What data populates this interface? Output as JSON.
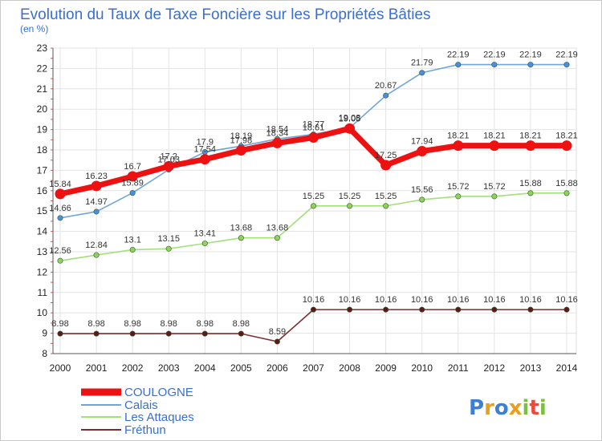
{
  "chart_data": {
    "type": "line",
    "title": "Evolution du Taux de Taxe Foncière sur les Propriétés Bâties",
    "subtitle": "(en %)",
    "x": [
      "2000",
      "2001",
      "2002",
      "2003",
      "2004",
      "2005",
      "2006",
      "2007",
      "2008",
      "2009",
      "2010",
      "2011",
      "2012",
      "2013",
      "2014"
    ],
    "ylim": [
      8,
      23
    ],
    "yticks": [
      8,
      9,
      10,
      11,
      12,
      13,
      14,
      15,
      16,
      17,
      18,
      19,
      20,
      21,
      22,
      23
    ],
    "grid": true,
    "legend_placement": "bottom-left",
    "series": [
      {
        "name": "COULOGNE",
        "color": "#ee1111",
        "values": [
          15.84,
          16.23,
          16.7,
          17.2,
          17.54,
          17.98,
          18.34,
          18.61,
          19.05,
          17.25,
          17.94,
          18.21,
          18.21,
          18.21,
          18.21
        ],
        "labels": [
          "15.84",
          "16.23",
          "16.7",
          "17.2",
          "17.54",
          "17.98",
          "18.34",
          "18.61",
          "19.05",
          "17.25",
          "17.94",
          "18.21",
          "18.21",
          "18.21",
          "18.21"
        ]
      },
      {
        "name": "Calais",
        "color": "#6fa6d6",
        "marker": "#4a90e2",
        "values": [
          14.66,
          14.97,
          15.89,
          17.03,
          17.9,
          18.19,
          18.54,
          18.77,
          19.08,
          20.67,
          21.79,
          22.19,
          22.19,
          22.19,
          22.19
        ],
        "labels": [
          "14.66",
          "14.97",
          "15.89",
          "17.03",
          "17.9",
          "18.19",
          "18.54",
          "18.77",
          "19.08",
          "20.67",
          "21.79",
          "22.19",
          "22.19",
          "22.19",
          "22.19"
        ]
      },
      {
        "name": "Les Attaques",
        "color": "#a4e07a",
        "marker": "#8fd35a",
        "values": [
          12.56,
          12.84,
          13.1,
          13.15,
          13.41,
          13.68,
          13.68,
          15.25,
          15.25,
          15.25,
          15.56,
          15.72,
          15.72,
          15.88,
          15.88
        ],
        "labels": [
          "12.56",
          "12.84",
          "13.1",
          "13.15",
          "13.41",
          "13.68",
          "13.68",
          "15.25",
          "15.25",
          "15.25",
          "15.56",
          "15.72",
          "15.72",
          "15.88",
          "15.88"
        ]
      },
      {
        "name": "Fréthun",
        "color": "#7a2e2e",
        "marker": "#5a1a1a",
        "values": [
          8.98,
          8.98,
          8.98,
          8.98,
          8.98,
          8.98,
          8.59,
          10.16,
          10.16,
          10.16,
          10.16,
          10.16,
          10.16,
          10.16,
          10.16
        ],
        "labels": [
          "8.98",
          "8.98",
          "8.98",
          "8.98",
          "8.98",
          "8.98",
          "8.59",
          "10.16",
          "10.16",
          "10.16",
          "10.16",
          "10.16",
          "10.16",
          "10.16",
          "10.16"
        ]
      }
    ]
  },
  "logo": {
    "text": "Proxiti"
  }
}
